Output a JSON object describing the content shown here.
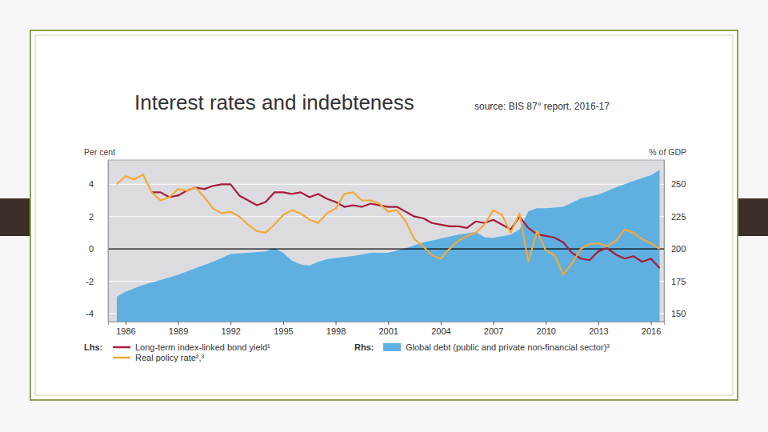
{
  "chart_data": {
    "type": "line",
    "title": "Interest rates  and indebteness",
    "subtitle": "source: BIS 87° report, 2016-17",
    "ylabel": "Per cent",
    "y2label": "% of GDP",
    "annotations": [
      "Lhs:",
      "Rhs:"
    ],
    "xlim": [
      1985,
      2016.75
    ],
    "xticks": [
      1986,
      1989,
      1992,
      1995,
      1998,
      2001,
      2004,
      2007,
      2010,
      2013,
      2016
    ],
    "ylim": [
      -4.5,
      5.5
    ],
    "yticks": [
      -4,
      -2,
      0,
      2,
      4
    ],
    "y2lim": [
      143.75,
      268.75
    ],
    "y2ticks": [
      150,
      175,
      200,
      225,
      250
    ],
    "grid": true,
    "legend": "bottom",
    "series": [
      {
        "name": "Long-term index-linked bond yield¹",
        "color": "#a61c3c",
        "type": "line",
        "axis": "y",
        "x": [
          1987.5,
          1988,
          1988.5,
          1989,
          1989.5,
          1990,
          1990.5,
          1991,
          1991.5,
          1992,
          1992.5,
          1993,
          1993.5,
          1994,
          1994.5,
          1995,
          1995.5,
          1996,
          1996.5,
          1997,
          1997.5,
          1998,
          1998.5,
          1999,
          1999.5,
          2000,
          2000.5,
          2001,
          2001.5,
          2002,
          2002.5,
          2003,
          2003.5,
          2004,
          2004.5,
          2005,
          2005.5,
          2006,
          2006.5,
          2007,
          2007.5,
          2008,
          2008.5,
          2009,
          2009.5,
          2010,
          2010.5,
          2011,
          2011.5,
          2012,
          2012.5,
          2013,
          2013.5,
          2014,
          2014.5,
          2015,
          2015.5,
          2016,
          2016.5
        ],
        "values": [
          3.5,
          3.5,
          3.2,
          3.3,
          3.6,
          3.8,
          3.7,
          3.9,
          4.0,
          4.0,
          3.3,
          3.0,
          2.7,
          2.9,
          3.5,
          3.5,
          3.4,
          3.5,
          3.2,
          3.4,
          3.1,
          2.9,
          2.6,
          2.7,
          2.6,
          2.8,
          2.7,
          2.6,
          2.6,
          2.3,
          2.0,
          1.9,
          1.6,
          1.5,
          1.4,
          1.4,
          1.3,
          1.7,
          1.6,
          1.8,
          1.5,
          1.2,
          2.0,
          1.3,
          0.9,
          0.8,
          0.7,
          0.4,
          -0.25,
          -0.6,
          -0.7,
          -0.15,
          0.05,
          -0.35,
          -0.6,
          -0.45,
          -0.8,
          -0.6,
          -1.2
        ]
      },
      {
        "name": "Real policy rate²,³",
        "color": "#f2a93b",
        "type": "line",
        "axis": "y",
        "x": [
          1985.5,
          1986,
          1986.5,
          1987,
          1987.5,
          1988,
          1988.5,
          1989,
          1989.5,
          1990,
          1990.5,
          1991,
          1991.5,
          1992,
          1992.5,
          1993,
          1993.5,
          1994,
          1994.5,
          1995,
          1995.5,
          1996,
          1996.5,
          1997,
          1997.5,
          1998,
          1998.5,
          1999,
          1999.5,
          2000,
          2000.5,
          2001,
          2001.5,
          2002,
          2002.5,
          2003,
          2003.5,
          2004,
          2004.5,
          2005,
          2005.5,
          2006,
          2006.5,
          2007,
          2007.5,
          2008,
          2008.5,
          2009,
          2009.5,
          2010,
          2010.5,
          2011,
          2011.5,
          2012,
          2012.5,
          2013,
          2013.5,
          2014,
          2014.5,
          2015,
          2015.5,
          2016,
          2016.5
        ],
        "values": [
          4.0,
          4.5,
          4.3,
          4.6,
          3.5,
          3.0,
          3.2,
          3.7,
          3.6,
          3.8,
          3.2,
          2.5,
          2.2,
          2.3,
          2.0,
          1.5,
          1.1,
          1.0,
          1.5,
          2.1,
          2.4,
          2.2,
          1.8,
          1.6,
          2.2,
          2.5,
          3.4,
          3.5,
          3.0,
          3.0,
          2.8,
          2.3,
          2.4,
          1.7,
          0.6,
          0.15,
          -0.4,
          -0.6,
          0.0,
          0.5,
          0.8,
          1.0,
          1.5,
          2.4,
          2.1,
          1.0,
          2.2,
          -0.8,
          1.1,
          -0.1,
          -0.4,
          -1.6,
          -0.9,
          0.0,
          0.3,
          0.35,
          0.15,
          0.5,
          1.2,
          1.0,
          0.6,
          0.35,
          0.0
        ]
      },
      {
        "name": "Global debt (public and private non-financial sector)³",
        "color": "#5fb0e0",
        "type": "area",
        "axis": "y2",
        "x": [
          1985.5,
          1986,
          1987,
          1988,
          1989,
          1990,
          1991,
          1992,
          1993,
          1994,
          1994.5,
          1995,
          1995.5,
          1996,
          1996.5,
          1997,
          1997.5,
          1998,
          1999,
          2000,
          2001,
          2002,
          2003,
          2004,
          2005,
          2006,
          2006.5,
          2007,
          2008,
          2008.5,
          2009,
          2009.5,
          2010,
          2011,
          2012,
          2013,
          2014,
          2015,
          2016,
          2016.5
        ],
        "values": [
          163,
          167,
          172,
          176,
          180,
          185,
          190,
          196,
          197,
          198,
          200.5,
          197,
          191,
          188,
          187,
          190,
          192,
          193,
          194.5,
          197,
          197,
          200.5,
          205,
          208,
          211,
          213,
          209,
          208.5,
          211,
          215,
          229,
          231.5,
          231.5,
          232.5,
          239,
          242,
          247.5,
          252.5,
          257,
          261
        ]
      }
    ]
  }
}
